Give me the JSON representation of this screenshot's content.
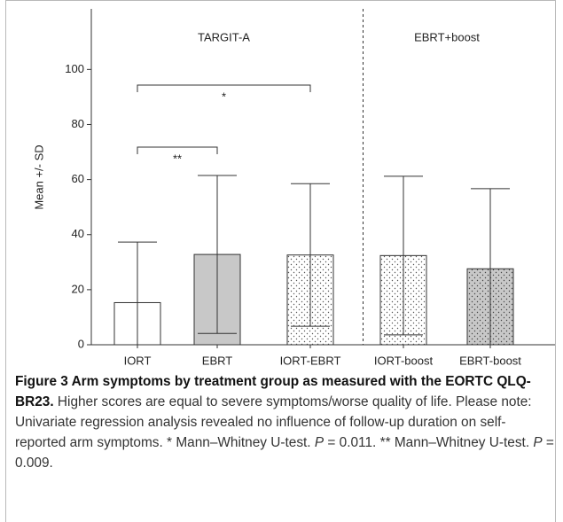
{
  "chart_data": {
    "type": "bar",
    "ylabel": "Mean +/- SD",
    "categories": [
      "IORT",
      "EBRT",
      "IORT-EBRT",
      "IORT-boost",
      "EBRT-boost"
    ],
    "values": [
      15.3,
      32.8,
      32.6,
      32.4,
      27.6
    ],
    "errors": [
      22.0,
      28.7,
      25.9,
      28.8,
      29.1
    ],
    "fills": [
      "#ffffff",
      "#c8c8c8",
      "dots-white",
      "dots-white",
      "dots-gray"
    ],
    "groups": [
      {
        "label": "TARGIT-A",
        "categories": [
          0,
          1,
          2
        ]
      },
      {
        "label": "EBRT+boost",
        "categories": [
          3,
          4
        ]
      }
    ],
    "annotations": [
      {
        "label": "*",
        "categories": [
          0,
          2
        ]
      },
      {
        "label": "**",
        "categories": [
          0,
          1
        ]
      }
    ],
    "ylim": [
      0,
      122
    ],
    "yticks": [
      0,
      20,
      40,
      60,
      80,
      100
    ]
  },
  "caption": {
    "title": "Figure 3 Arm symptoms by treatment group as measured with the EORTC QLQ-BR23.",
    "body": [
      "Higher scores are equal to severe symptoms/worse quality of life. Please note: Univariate regression analysis revealed no influence of follow-up duration on self-reported arm symptoms. * Mann–Whitney U-test. ",
      "P",
      " = 0.011. ** Mann–Whitney U-test. ",
      "P",
      " = 0.009."
    ]
  }
}
